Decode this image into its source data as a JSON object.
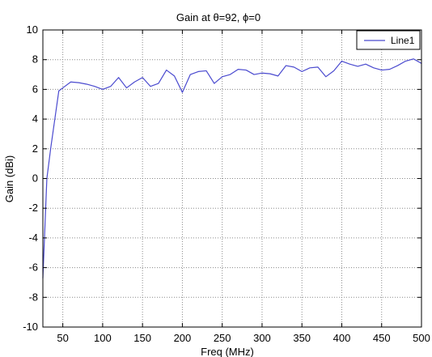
{
  "chart_data": {
    "type": "line",
    "title": "Gain at θ=92, ϕ=0",
    "xlabel": "Freq (MHz)",
    "ylabel": "Gain (dBi)",
    "xlim": [
      25,
      500
    ],
    "ylim": [
      -10,
      10
    ],
    "x_ticks": [
      50,
      100,
      150,
      200,
      250,
      300,
      350,
      400,
      450,
      500
    ],
    "y_ticks": [
      -10,
      -8,
      -6,
      -4,
      -2,
      0,
      2,
      4,
      6,
      8,
      10
    ],
    "grid": true,
    "legend_position": "top-right",
    "series": [
      {
        "name": "Line1",
        "color": "#4a4acf",
        "points": [
          [
            25,
            -6.7
          ],
          [
            30,
            0.0
          ],
          [
            35,
            2.1
          ],
          [
            40,
            4.0
          ],
          [
            45,
            5.9
          ],
          [
            50,
            6.1
          ],
          [
            60,
            6.5
          ],
          [
            70,
            6.45
          ],
          [
            80,
            6.35
          ],
          [
            90,
            6.2
          ],
          [
            100,
            6.0
          ],
          [
            110,
            6.2
          ],
          [
            120,
            6.8
          ],
          [
            130,
            6.1
          ],
          [
            140,
            6.5
          ],
          [
            150,
            6.8
          ],
          [
            160,
            6.2
          ],
          [
            170,
            6.4
          ],
          [
            180,
            7.3
          ],
          [
            190,
            6.9
          ],
          [
            200,
            5.8
          ],
          [
            210,
            7.0
          ],
          [
            220,
            7.2
          ],
          [
            230,
            7.25
          ],
          [
            240,
            6.4
          ],
          [
            250,
            6.85
          ],
          [
            260,
            7.0
          ],
          [
            270,
            7.35
          ],
          [
            280,
            7.3
          ],
          [
            290,
            7.0
          ],
          [
            300,
            7.1
          ],
          [
            310,
            7.05
          ],
          [
            320,
            6.9
          ],
          [
            330,
            7.6
          ],
          [
            340,
            7.5
          ],
          [
            350,
            7.2
          ],
          [
            360,
            7.45
          ],
          [
            370,
            7.5
          ],
          [
            380,
            6.85
          ],
          [
            390,
            7.25
          ],
          [
            400,
            7.9
          ],
          [
            410,
            7.7
          ],
          [
            420,
            7.55
          ],
          [
            430,
            7.7
          ],
          [
            440,
            7.45
          ],
          [
            450,
            7.3
          ],
          [
            460,
            7.35
          ],
          [
            470,
            7.6
          ],
          [
            480,
            7.9
          ],
          [
            490,
            8.05
          ],
          [
            500,
            7.75
          ]
        ]
      }
    ]
  }
}
